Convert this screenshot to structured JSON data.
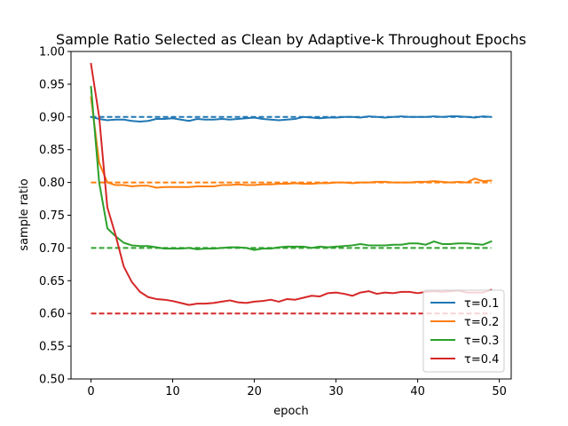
{
  "chart_data": {
    "type": "line",
    "title": "Sample Ratio Selected as Clean by Adaptive-k Throughout Epochs",
    "xlabel": "epoch",
    "ylabel": "sample ratio",
    "xlim": [
      -2.45,
      51.45
    ],
    "ylim": [
      0.5,
      1.0
    ],
    "xticks": [
      0,
      10,
      20,
      30,
      40,
      50
    ],
    "yticks": [
      0.5,
      0.55,
      0.6,
      0.65,
      0.7,
      0.75,
      0.8,
      0.85,
      0.9,
      0.95,
      1.0
    ],
    "xtick_labels": [
      "0",
      "10",
      "20",
      "30",
      "40",
      "50"
    ],
    "ytick_labels": [
      "0.50",
      "0.55",
      "0.60",
      "0.65",
      "0.70",
      "0.75",
      "0.80",
      "0.85",
      "0.90",
      "0.95",
      "1.00"
    ],
    "grid": false,
    "legend_position": "lower-right",
    "x": [
      0,
      1,
      2,
      3,
      4,
      5,
      6,
      7,
      8,
      9,
      10,
      11,
      12,
      13,
      14,
      15,
      16,
      17,
      18,
      19,
      20,
      21,
      22,
      23,
      24,
      25,
      26,
      27,
      28,
      29,
      30,
      31,
      32,
      33,
      34,
      35,
      36,
      37,
      38,
      39,
      40,
      41,
      42,
      43,
      44,
      45,
      46,
      47,
      48,
      49
    ],
    "series": [
      {
        "name": "τ=0.1",
        "color": "#1f77b4",
        "target": 0.9,
        "values": [
          0.9,
          0.897,
          0.895,
          0.896,
          0.896,
          0.894,
          0.893,
          0.894,
          0.897,
          0.897,
          0.898,
          0.896,
          0.894,
          0.897,
          0.896,
          0.896,
          0.897,
          0.896,
          0.897,
          0.898,
          0.899,
          0.897,
          0.896,
          0.895,
          0.896,
          0.897,
          0.9,
          0.899,
          0.898,
          0.899,
          0.899,
          0.9,
          0.9,
          0.899,
          0.901,
          0.9,
          0.899,
          0.9,
          0.901,
          0.9,
          0.9,
          0.9,
          0.901,
          0.9,
          0.901,
          0.901,
          0.9,
          0.899,
          0.901,
          0.9
        ]
      },
      {
        "name": "τ=0.2",
        "color": "#ff7f0e",
        "target": 0.8,
        "values": [
          0.93,
          0.83,
          0.8,
          0.796,
          0.796,
          0.794,
          0.795,
          0.795,
          0.792,
          0.793,
          0.793,
          0.793,
          0.793,
          0.794,
          0.794,
          0.794,
          0.796,
          0.796,
          0.797,
          0.796,
          0.796,
          0.797,
          0.797,
          0.798,
          0.798,
          0.799,
          0.798,
          0.798,
          0.799,
          0.799,
          0.8,
          0.8,
          0.799,
          0.8,
          0.8,
          0.801,
          0.801,
          0.8,
          0.8,
          0.8,
          0.801,
          0.801,
          0.802,
          0.801,
          0.8,
          0.801,
          0.8,
          0.806,
          0.802,
          0.803
        ]
      },
      {
        "name": "τ=0.3",
        "color": "#2ca02c",
        "target": 0.7,
        "values": [
          0.946,
          0.8,
          0.73,
          0.718,
          0.708,
          0.704,
          0.703,
          0.703,
          0.701,
          0.699,
          0.699,
          0.699,
          0.7,
          0.698,
          0.699,
          0.699,
          0.7,
          0.701,
          0.701,
          0.7,
          0.697,
          0.699,
          0.699,
          0.701,
          0.702,
          0.702,
          0.702,
          0.7,
          0.702,
          0.701,
          0.702,
          0.703,
          0.704,
          0.706,
          0.704,
          0.704,
          0.704,
          0.705,
          0.705,
          0.707,
          0.707,
          0.705,
          0.71,
          0.706,
          0.706,
          0.707,
          0.707,
          0.706,
          0.705,
          0.71
        ]
      },
      {
        "name": "τ=0.4",
        "color": "#d62728",
        "target": 0.6,
        "values": [
          0.981,
          0.9,
          0.762,
          0.72,
          0.672,
          0.648,
          0.633,
          0.625,
          0.622,
          0.621,
          0.619,
          0.616,
          0.613,
          0.615,
          0.615,
          0.616,
          0.618,
          0.62,
          0.617,
          0.616,
          0.618,
          0.619,
          0.621,
          0.618,
          0.622,
          0.621,
          0.624,
          0.627,
          0.626,
          0.631,
          0.632,
          0.63,
          0.627,
          0.632,
          0.634,
          0.63,
          0.632,
          0.631,
          0.633,
          0.633,
          0.631,
          0.633,
          0.634,
          0.633,
          0.634,
          0.635,
          0.632,
          0.632,
          0.632,
          0.636
        ]
      }
    ]
  }
}
